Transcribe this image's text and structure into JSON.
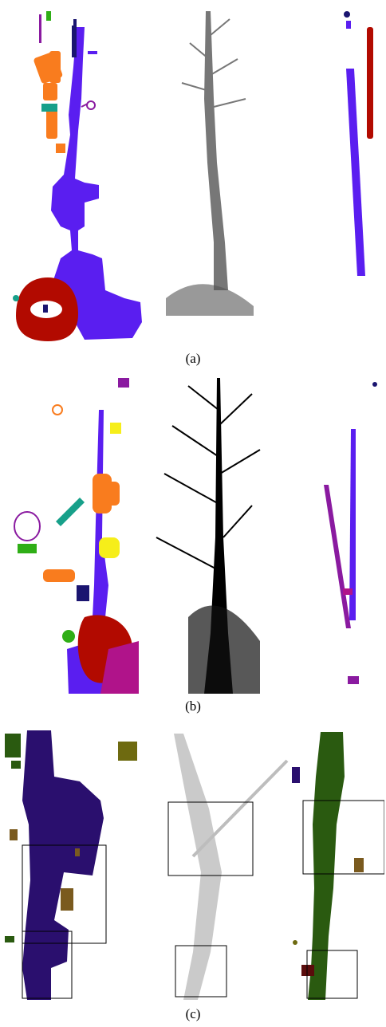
{
  "captions": {
    "a": "(a)",
    "b": "(b)",
    "c": "(c)"
  },
  "palette": {
    "blue_violet": "#5a1ef0",
    "navy": "#1a1570",
    "orange": "#f97c1e",
    "red": "#b20a00",
    "teal": "#17a08a",
    "green": "#2fae16",
    "purple": "#8a1aa0",
    "yellow": "#f6ee1a",
    "magenta": "#b0138a",
    "indigo": "#2a0f6e",
    "dark_green": "#2a5a10",
    "olive": "#6e6a10",
    "brown": "#7a5a1e",
    "maroon": "#5a0c0c",
    "black": "#000000",
    "gray": "#777777",
    "light_gray": "#bdbdbd"
  }
}
